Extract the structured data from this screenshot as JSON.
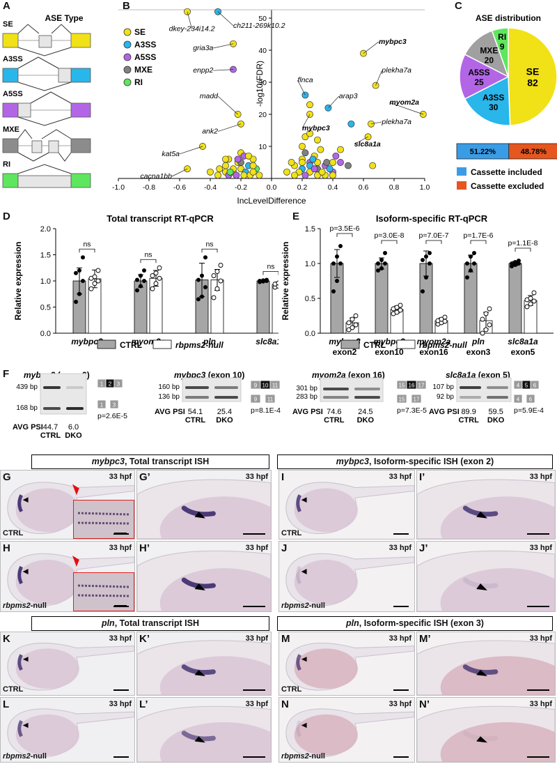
{
  "A": {
    "label": "A",
    "title": "ASE Type",
    "rows": [
      {
        "name": "SE",
        "color": "#f1e117"
      },
      {
        "name": "A3SS",
        "color": "#29b6ea"
      },
      {
        "name": "A5SS",
        "color": "#b266e6"
      },
      {
        "name": "MXE",
        "color": "#8c8c8c"
      },
      {
        "name": "RI",
        "color": "#5ee65e"
      }
    ]
  },
  "B": {
    "label": "B",
    "ylabel": "-log10(FDR)",
    "xlabel": "IncLevelDifference",
    "legend": [
      {
        "name": "SE",
        "color": "#f1e117"
      },
      {
        "name": "A3SS",
        "color": "#29b6ea"
      },
      {
        "name": "A5SS",
        "color": "#b266e6"
      },
      {
        "name": "MXE",
        "color": "#808080"
      },
      {
        "name": "RI",
        "color": "#5ee65e"
      }
    ],
    "xticks": [
      "-1.0",
      "-0.8",
      "-0.6",
      "-0.4",
      "-0.2",
      "0.0",
      "0.2",
      "0.4",
      "0.6",
      "0.8",
      "1.0"
    ],
    "yticks": [
      "0",
      "10",
      "20",
      "30",
      "40",
      "50"
    ],
    "genes": [
      {
        "t": "dkey-234i14.2",
        "b": false
      },
      {
        "t": "ch211-269k10.2",
        "b": false
      },
      {
        "t": "gria3a",
        "b": false
      },
      {
        "t": "enpp2",
        "b": false
      },
      {
        "t": "madd",
        "b": false
      },
      {
        "t": "ank2",
        "b": false
      },
      {
        "t": "kat5a",
        "b": false
      },
      {
        "t": "cacna1bb",
        "b": false
      },
      {
        "t": "mybpc3",
        "b": true
      },
      {
        "t": "plekha7a",
        "b": false
      },
      {
        "t": "flnca",
        "b": false
      },
      {
        "t": "arap3",
        "b": false
      },
      {
        "t": "myom2a",
        "b": true
      },
      {
        "t": "mybpc3",
        "b": true
      },
      {
        "t": "plekha7a",
        "b": false
      },
      {
        "t": "slc8a1a",
        "b": true
      }
    ]
  },
  "C": {
    "label": "C",
    "title": "ASE distribution",
    "slices": [
      {
        "name": "SE",
        "value": 82,
        "color": "#f1e117"
      },
      {
        "name": "A3SS",
        "value": 30,
        "color": "#29b6ea"
      },
      {
        "name": "A5SS",
        "value": 25,
        "color": "#b266e6"
      },
      {
        "name": "MXE",
        "value": 20,
        "color": "#a0a0a0"
      },
      {
        "name": "RI",
        "value": 9,
        "color": "#5ee65e"
      }
    ],
    "bar": [
      {
        "pct": "51.22%",
        "value": 51.22,
        "color": "#3b9ce6"
      },
      {
        "pct": "48.78%",
        "value": 48.78,
        "color": "#e6561f"
      }
    ],
    "legend": [
      {
        "name": "Cassette included",
        "color": "#3b9ce6"
      },
      {
        "name": "Cassette excluded",
        "color": "#e6561f"
      }
    ]
  },
  "D": {
    "label": "D",
    "title": "Total transcript RT-qPCR",
    "ylabel": "Relative expression",
    "yticks": [
      "0.0",
      "0.5",
      "1.0",
      "1.5",
      "2.0"
    ],
    "groups": [
      {
        "name": "mybpc3",
        "ctrl": 1.0,
        "ctrl_sd": 0.25,
        "ko": 1.04,
        "ko_sd": 0.17,
        "sig": "ns",
        "pc": [
          0.6,
          0.75,
          1.0,
          1.15,
          1.2,
          1.45
        ],
        "pk": [
          0.85,
          0.95,
          1.0,
          1.05,
          1.08,
          1.2
        ]
      },
      {
        "name": "myom2a",
        "ctrl": 1.0,
        "ctrl_sd": 0.12,
        "ko": 1.05,
        "ko_sd": 0.15,
        "sig": "ns",
        "pc": [
          0.82,
          0.9,
          1.0,
          1.02,
          1.1,
          1.2
        ],
        "pk": [
          0.85,
          0.95,
          1.05,
          1.1,
          1.15,
          1.25
        ]
      },
      {
        "name": "pln",
        "ctrl": 1.02,
        "ctrl_sd": 0.32,
        "ko": 1.02,
        "ko_sd": 0.2,
        "sig": "ns",
        "pc": [
          0.65,
          0.7,
          0.88,
          1.02,
          1.1,
          1.45
        ],
        "pk": [
          0.68,
          0.85,
          1.0,
          1.1,
          1.18,
          1.3
        ]
      },
      {
        "name": "slc8a1a",
        "ctrl": 1.0,
        "ctrl_sd": 0.02,
        "ko": 0.93,
        "ko_sd": 0.05,
        "sig": "ns",
        "pc": [
          0.98,
          0.99,
          1.0,
          1.0,
          1.01,
          1.02
        ],
        "pk": [
          0.88,
          0.9,
          0.93,
          0.94,
          0.96,
          0.98
        ]
      }
    ],
    "legend": [
      "CTRL",
      "rbpms2-null"
    ]
  },
  "E": {
    "label": "E",
    "title": "Isoform-specific RT-qPCR",
    "ylabel": "Relative expression",
    "yticks": [
      "0.0",
      "0.5",
      "1.0",
      "1.5"
    ],
    "groups": [
      {
        "name": "mybpc3",
        "sub": "exon2",
        "ctrl": 1.0,
        "ctrl_sd": 0.2,
        "ko": 0.15,
        "ko_sd": 0.07,
        "p": "p=3.5E-6",
        "pc": [
          0.6,
          0.75,
          1.0,
          1.0,
          1.1,
          1.25
        ],
        "pk": [
          0.05,
          0.08,
          0.12,
          0.15,
          0.2,
          0.25
        ]
      },
      {
        "name": "mybpc3",
        "sub": "exon10",
        "ctrl": 1.0,
        "ctrl_sd": 0.08,
        "ko": 0.34,
        "ko_sd": 0.05,
        "p": "p=3.0E-8",
        "pc": [
          0.9,
          0.93,
          1.0,
          1.0,
          1.05,
          1.15
        ],
        "pk": [
          0.28,
          0.3,
          0.33,
          0.35,
          0.37,
          0.4
        ]
      },
      {
        "name": "myom2a",
        "sub": "exon16",
        "ctrl": 1.0,
        "ctrl_sd": 0.18,
        "ko": 0.18,
        "ko_sd": 0.04,
        "p": "p=7.0E-7",
        "pc": [
          0.6,
          0.8,
          1.0,
          1.05,
          1.1,
          1.15
        ],
        "pk": [
          0.13,
          0.15,
          0.17,
          0.18,
          0.2,
          0.23
        ]
      },
      {
        "name": "pln",
        "sub": "exon3",
        "ctrl": 1.0,
        "ctrl_sd": 0.12,
        "ko": 0.18,
        "ko_sd": 0.12,
        "p": "p=1.7E-6",
        "pc": [
          0.8,
          0.9,
          1.0,
          1.0,
          1.1,
          1.15
        ],
        "pk": [
          0.0,
          0.05,
          0.12,
          0.2,
          0.28,
          0.35
        ]
      },
      {
        "name": "slc8a1a",
        "sub": "exon5",
        "ctrl": 1.0,
        "ctrl_sd": 0.03,
        "ko": 0.47,
        "ko_sd": 0.07,
        "p": "p=1.1E-8",
        "pc": [
          0.96,
          0.98,
          1.0,
          1.0,
          1.02,
          1.04
        ],
        "pk": [
          0.38,
          0.42,
          0.46,
          0.48,
          0.5,
          0.58
        ]
      }
    ],
    "legend": [
      "CTRL",
      "rbpms2-null"
    ]
  },
  "F": {
    "label": "F",
    "panels": [
      {
        "gene": "mybpc3",
        "exon": "(exon 2)",
        "bands": [
          "439 bp",
          "168 bp"
        ],
        "psi_label": "AVG PSI",
        "psi": [
          "44.7",
          "6.0"
        ],
        "cond": [
          "CTRL",
          "DKO"
        ],
        "p": "p=2.6E-5",
        "ex_top": [
          "1",
          "2",
          "3"
        ],
        "ex_bot": [
          "1",
          "3"
        ]
      },
      {
        "gene": "mybpc3",
        "exon": "(exon 10)",
        "bands": [
          "160 bp",
          "136 bp"
        ],
        "psi_label": "AVG PSI",
        "psi": [
          "54.1",
          "25.4"
        ],
        "cond": [
          "CTRL",
          "DKO"
        ],
        "p": "p=8.1E-4",
        "ex_top": [
          "9",
          "10",
          "11"
        ],
        "ex_bot": [
          "9",
          "11"
        ]
      },
      {
        "gene": "myom2a",
        "exon": "(exon 16)",
        "bands": [
          "301 bp",
          "283 bp"
        ],
        "psi_label": "AVG PSI",
        "psi": [
          "74.6",
          "24.5"
        ],
        "cond": [
          "CTRL",
          "DKO"
        ],
        "p": "p=7.3E-5",
        "ex_top": [
          "15",
          "16",
          "17"
        ],
        "ex_bot": [
          "15",
          "17"
        ]
      },
      {
        "gene": "slc8a1a",
        "exon": "(exon 5)",
        "bands": [
          "107 bp",
          "92 bp"
        ],
        "psi_label": "AVG PSI",
        "psi": [
          "89.9",
          "59.5"
        ],
        "cond": [
          "CTRL",
          "DKO"
        ],
        "p": "p=5.9E-4",
        "ex_top": [
          "4",
          "5",
          "6"
        ],
        "ex_bot": [
          "4",
          "6"
        ]
      }
    ]
  },
  "ish": {
    "hdr1": {
      "gene": "mybpc3",
      "rest": ", Total transcript ISH"
    },
    "hdr2": {
      "gene": "mybpc3",
      "rest": ", Isoform-specific ISH (exon 2)"
    },
    "hdr3": {
      "gene": "pln",
      "rest": ", Total transcript ISH"
    },
    "hdr4": {
      "gene": "pln",
      "rest": ", Isoform-specific ISH (exon 3)"
    },
    "hpf": "33 hpf",
    "ctrl": "CTRL",
    "ko_gene": "rbpms2",
    "ko_rest": "-null",
    "panels": [
      "G",
      "G’",
      "I",
      "I’",
      "H",
      "H’",
      "J",
      "J’",
      "K",
      "K’",
      "M",
      "M’",
      "L",
      "L’",
      "N",
      "N’"
    ]
  }
}
